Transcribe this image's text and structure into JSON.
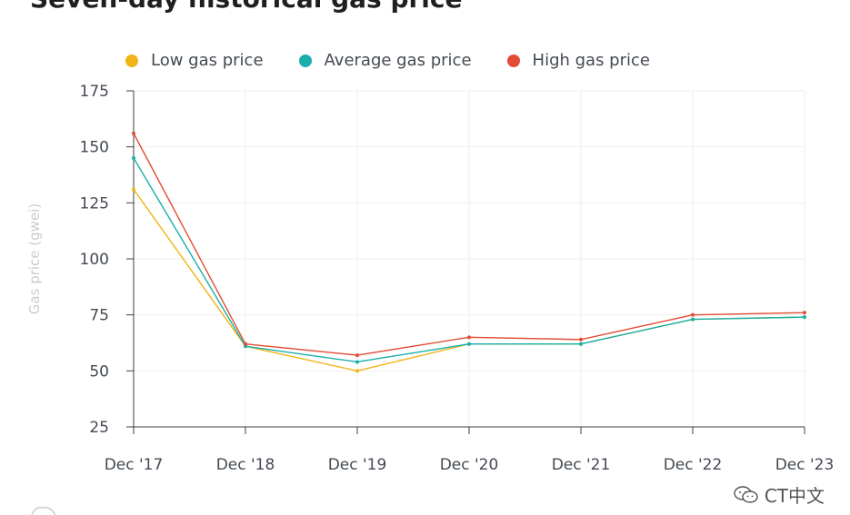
{
  "chart_data": {
    "type": "line",
    "title": "Seven-day historical gas price",
    "ylabel": "Gas price (gwei)",
    "xlabel": "",
    "categories": [
      "Dec '17",
      "Dec '18",
      "Dec '19",
      "Dec '20",
      "Dec '21",
      "Dec '22",
      "Dec '23"
    ],
    "ylim": [
      25,
      175
    ],
    "yticks": [
      25,
      50,
      75,
      100,
      125,
      150,
      175
    ],
    "grid": true,
    "legend_position": "top",
    "series": [
      {
        "name": "Low gas price",
        "color": "#f0b419",
        "values": [
          131,
          61,
          50,
          62,
          62,
          73,
          74
        ]
      },
      {
        "name": "Average gas price",
        "color": "#1aafab",
        "values": [
          145,
          61,
          54,
          62,
          62,
          73,
          74
        ]
      },
      {
        "name": "High gas price",
        "color": "#e24c36",
        "values": [
          156,
          62,
          57,
          65,
          64,
          75,
          76
        ]
      }
    ]
  },
  "watermark": {
    "text": "CT中文",
    "icon": "wechat-icon"
  }
}
